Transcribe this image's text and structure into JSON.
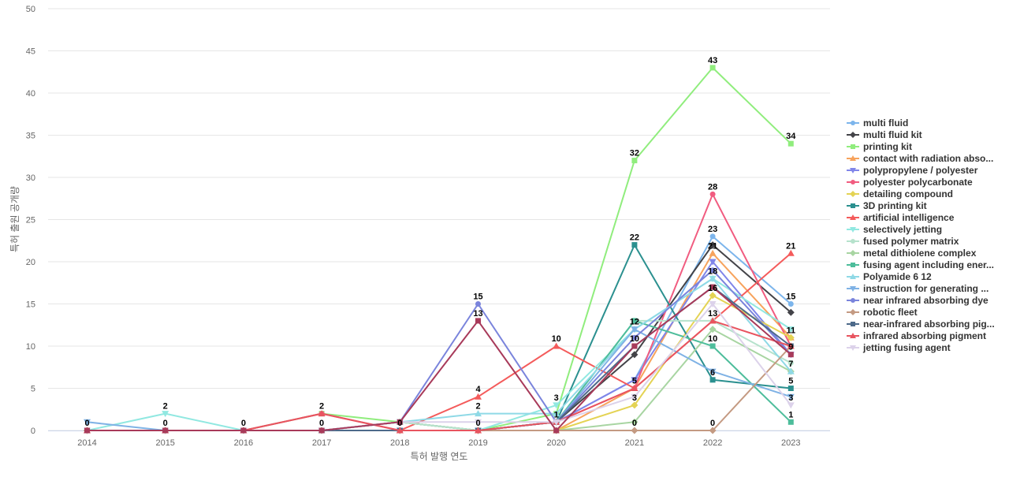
{
  "chart_data": {
    "type": "line",
    "title": "",
    "xlabel": "특허 발행 연도",
    "ylabel": "특허 출원 공개량",
    "categories": [
      "2014",
      "2015",
      "2016",
      "2017",
      "2018",
      "2019",
      "2020",
      "2021",
      "2022",
      "2023"
    ],
    "ylim": [
      0,
      50
    ],
    "yticks": [
      0,
      5,
      10,
      15,
      20,
      25,
      30,
      35,
      40,
      45,
      50
    ],
    "grid": true,
    "legend_position": "right",
    "series": [
      {
        "name": "multi fluid",
        "color": "#7cb5ec",
        "marker": "circle",
        "values": [
          0,
          0,
          0,
          0,
          1,
          0,
          1,
          6,
          23,
          15
        ]
      },
      {
        "name": "multi fluid kit",
        "color": "#434348",
        "marker": "diamond",
        "values": [
          0,
          0,
          0,
          0,
          1,
          0,
          1,
          9,
          22,
          14
        ]
      },
      {
        "name": "printing kit",
        "color": "#90ed7d",
        "marker": "square",
        "values": [
          0,
          0,
          0,
          2,
          1,
          0,
          2,
          32,
          43,
          34
        ]
      },
      {
        "name": "contact with radiation abso...",
        "color": "#f7a35c",
        "marker": "triangle",
        "values": [
          0,
          0,
          0,
          0,
          1,
          0,
          0,
          5,
          21,
          11
        ]
      },
      {
        "name": "polypropylene / polyester",
        "color": "#8085e9",
        "marker": "triangle-down",
        "values": [
          0,
          0,
          0,
          0,
          1,
          0,
          1,
          6,
          20,
          9
        ]
      },
      {
        "name": "polyester polycarbonate",
        "color": "#f15c80",
        "marker": "circle",
        "values": [
          0,
          0,
          0,
          2,
          0,
          0,
          1,
          5,
          28,
          10
        ]
      },
      {
        "name": "detailing compound",
        "color": "#e4d354",
        "marker": "diamond",
        "values": [
          0,
          0,
          0,
          0,
          1,
          0,
          0,
          3,
          16,
          11
        ]
      },
      {
        "name": "3D printing kit",
        "color": "#2b908f",
        "marker": "square",
        "values": [
          0,
          0,
          0,
          0,
          0,
          0,
          1,
          22,
          6,
          5
        ]
      },
      {
        "name": "artificial intelligence",
        "color": "#f45b5b",
        "marker": "triangle",
        "values": [
          0,
          0,
          0,
          0,
          0,
          4,
          10,
          5,
          13,
          21
        ]
      },
      {
        "name": "selectively jetting",
        "color": "#91e8e1",
        "marker": "triangle-down",
        "values": [
          0,
          2,
          0,
          0,
          1,
          0,
          3,
          12,
          18,
          12
        ]
      },
      {
        "name": "fused polymer matrix",
        "color": "#b6e2cc",
        "marker": "circle",
        "values": [
          0,
          0,
          0,
          0,
          1,
          0,
          1,
          13,
          13,
          8
        ]
      },
      {
        "name": "metal dithiolene complex",
        "color": "#a8d5a2",
        "marker": "diamond",
        "values": [
          0,
          0,
          0,
          0,
          0,
          0,
          0,
          1,
          12,
          7
        ]
      },
      {
        "name": "fusing agent including ener...",
        "color": "#4dbd9b",
        "marker": "square",
        "values": [
          0,
          0,
          0,
          0,
          0,
          0,
          1,
          13,
          10,
          1
        ]
      },
      {
        "name": "Polyamide 6 12",
        "color": "#8fd9e6",
        "marker": "triangle",
        "values": [
          0,
          0,
          0,
          0,
          1,
          2,
          2,
          12,
          18,
          7
        ]
      },
      {
        "name": "instruction for generating ...",
        "color": "#7fb2e5",
        "marker": "triangle-down",
        "values": [
          1,
          0,
          0,
          0,
          0,
          0,
          1,
          12,
          7,
          4
        ]
      },
      {
        "name": "near infrared absorbing dye",
        "color": "#7a84dc",
        "marker": "circle",
        "values": [
          0,
          0,
          0,
          0,
          1,
          15,
          1,
          11,
          19,
          9
        ]
      },
      {
        "name": "robotic fleet",
        "color": "#c49a82",
        "marker": "diamond",
        "values": [
          0,
          0,
          0,
          0,
          0,
          0,
          0,
          0,
          0,
          10
        ]
      },
      {
        "name": "near-infrared absorbing pig...",
        "color": "#4d6a8a",
        "marker": "square",
        "values": [
          0,
          0,
          0,
          0,
          0,
          0,
          1,
          10,
          17,
          10
        ]
      },
      {
        "name": "infrared absorbing pigment",
        "color": "#e8545f",
        "marker": "triangle",
        "values": [
          0,
          0,
          0,
          2,
          0,
          0,
          1,
          5,
          13,
          10
        ]
      },
      {
        "name": "jetting fusing agent",
        "color": "#dcd2ea",
        "marker": "triangle-down",
        "values": [
          0,
          0,
          0,
          0,
          1,
          1,
          1,
          4,
          15,
          3
        ]
      },
      {
        "name": "",
        "color": "#a83a5a",
        "marker": "square",
        "values": [
          0,
          0,
          0,
          0,
          1,
          13,
          0,
          10,
          17,
          9
        ]
      }
    ],
    "data_labels": [
      {
        "x": "2014",
        "y": 0,
        "text": "0"
      },
      {
        "x": "2015",
        "y": 0,
        "text": "0"
      },
      {
        "x": "2015",
        "y": 2,
        "text": "2"
      },
      {
        "x": "2016",
        "y": 0,
        "text": "0"
      },
      {
        "x": "2017",
        "y": 0,
        "text": "0"
      },
      {
        "x": "2017",
        "y": 2,
        "text": "2"
      },
      {
        "x": "2018",
        "y": 0,
        "text": "0"
      },
      {
        "x": "2019",
        "y": 0,
        "text": "0"
      },
      {
        "x": "2019",
        "y": 2,
        "text": "2"
      },
      {
        "x": "2019",
        "y": 4,
        "text": "4"
      },
      {
        "x": "2019",
        "y": 13,
        "text": "13"
      },
      {
        "x": "2019",
        "y": 15,
        "text": "15"
      },
      {
        "x": "2020",
        "y": 1,
        "text": "1"
      },
      {
        "x": "2020",
        "y": 3,
        "text": "3"
      },
      {
        "x": "2020",
        "y": 10,
        "text": "10"
      },
      {
        "x": "2021",
        "y": 0,
        "text": "0"
      },
      {
        "x": "2021",
        "y": 3,
        "text": "3"
      },
      {
        "x": "2021",
        "y": 5,
        "text": "5"
      },
      {
        "x": "2021",
        "y": 10,
        "text": "10"
      },
      {
        "x": "2021",
        "y": 12,
        "text": "12"
      },
      {
        "x": "2021",
        "y": 22,
        "text": "22"
      },
      {
        "x": "2021",
        "y": 32,
        "text": "32"
      },
      {
        "x": "2022",
        "y": 0,
        "text": "0"
      },
      {
        "x": "2022",
        "y": 6,
        "text": "6"
      },
      {
        "x": "2022",
        "y": 10,
        "text": "10"
      },
      {
        "x": "2022",
        "y": 13,
        "text": "13"
      },
      {
        "x": "2022",
        "y": 16,
        "text": "16"
      },
      {
        "x": "2022",
        "y": 18,
        "text": "18"
      },
      {
        "x": "2022",
        "y": 21,
        "text": "21"
      },
      {
        "x": "2022",
        "y": 23,
        "text": "23"
      },
      {
        "x": "2022",
        "y": 28,
        "text": "28"
      },
      {
        "x": "2022",
        "y": 43,
        "text": "43"
      },
      {
        "x": "2023",
        "y": 1,
        "text": "1"
      },
      {
        "x": "2023",
        "y": 3,
        "text": "3"
      },
      {
        "x": "2023",
        "y": 5,
        "text": "5"
      },
      {
        "x": "2023",
        "y": 7,
        "text": "7"
      },
      {
        "x": "2023",
        "y": 9,
        "text": "9"
      },
      {
        "x": "2023",
        "y": 11,
        "text": "11"
      },
      {
        "x": "2023",
        "y": 15,
        "text": "15"
      },
      {
        "x": "2023",
        "y": 21,
        "text": "21"
      },
      {
        "x": "2023",
        "y": 34,
        "text": "34"
      }
    ]
  }
}
